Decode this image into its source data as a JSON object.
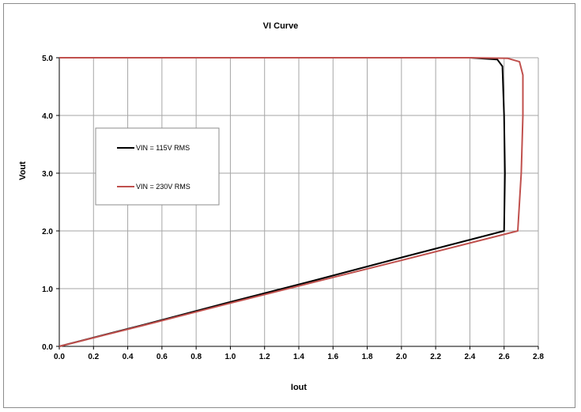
{
  "chart_data": {
    "type": "line",
    "title": "VI Curve",
    "xlabel": "Iout",
    "ylabel": "Vout",
    "xlim": [
      0,
      2.8
    ],
    "ylim": [
      0,
      5.0
    ],
    "xticks": [
      "0.0",
      "0.2",
      "0.4",
      "0.6",
      "0.8",
      "1.0",
      "1.2",
      "1.4",
      "1.6",
      "1.8",
      "2.0",
      "2.2",
      "2.4",
      "2.6",
      "2.8"
    ],
    "yticks": [
      "0.0",
      "1.0",
      "2.0",
      "3.0",
      "4.0",
      "5.0"
    ],
    "grid": true,
    "legend_position": "upper-left",
    "series": [
      {
        "name": "VIN = 115V RMS",
        "color": "#000000",
        "points": [
          [
            0,
            0
          ],
          [
            0.5,
            0.38
          ],
          [
            1.0,
            0.77
          ],
          [
            1.5,
            1.15
          ],
          [
            2.0,
            1.54
          ],
          [
            2.6,
            2.0
          ],
          [
            2.605,
            3.0
          ],
          [
            2.6,
            4.0
          ],
          [
            2.59,
            4.85
          ],
          [
            2.56,
            4.97
          ],
          [
            2.4,
            5.0
          ],
          [
            1.0,
            5.0
          ],
          [
            0,
            5.0
          ]
        ]
      },
      {
        "name": "VIN = 230V RMS",
        "color": "#c0504d",
        "points": [
          [
            0,
            0
          ],
          [
            0.5,
            0.37
          ],
          [
            1.0,
            0.75
          ],
          [
            1.5,
            1.12
          ],
          [
            2.0,
            1.49
          ],
          [
            2.68,
            2.0
          ],
          [
            2.7,
            3.0
          ],
          [
            2.71,
            4.0
          ],
          [
            2.71,
            4.7
          ],
          [
            2.69,
            4.93
          ],
          [
            2.62,
            4.99
          ],
          [
            2.4,
            5.0
          ],
          [
            1.0,
            5.0
          ],
          [
            0,
            5.0
          ]
        ]
      }
    ]
  }
}
